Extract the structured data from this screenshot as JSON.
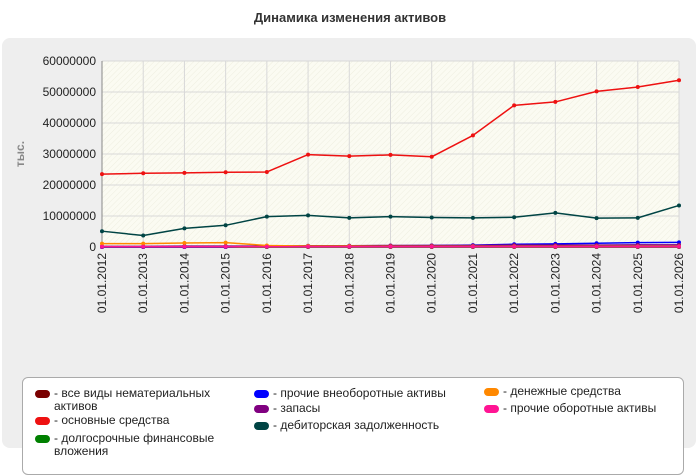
{
  "chart_data": {
    "type": "line",
    "title": "Динамика изменения активов",
    "ylabel": "тыс.",
    "xlabel": "",
    "ylim": [
      0,
      60000000
    ],
    "yticks": [
      "0",
      "10000000",
      "20000000",
      "30000000",
      "40000000",
      "50000000",
      "60000000"
    ],
    "categories": [
      "01.01.2012",
      "01.01.2013",
      "01.01.2014",
      "01.01.2015",
      "01.01.2016",
      "01.01.2017",
      "01.01.2018",
      "01.01.2019",
      "01.01.2020",
      "01.01.2021",
      "01.01.2022",
      "01.01.2023",
      "01.01.2024",
      "01.01.2025",
      "01.01.2026"
    ],
    "grid": true,
    "legend_position": "bottom",
    "series": [
      {
        "name": "- все виды нематериальных активов",
        "color": "#7a0000",
        "values": [
          0,
          0,
          0,
          0,
          0,
          0,
          0,
          0,
          0,
          0,
          0,
          0,
          0,
          0,
          0
        ]
      },
      {
        "name": "- основные средства",
        "color": "#ee1111",
        "values": [
          23500000,
          23800000,
          23900000,
          24100000,
          24200000,
          29800000,
          29300000,
          29700000,
          29100000,
          36000000,
          45700000,
          46800000,
          50200000,
          51600000,
          53800000
        ]
      },
      {
        "name": "- долгосрочные финансовые вложения",
        "color": "#008000",
        "values": [
          0,
          0,
          0,
          0,
          0,
          0,
          0,
          0,
          0,
          0,
          0,
          0,
          0,
          0,
          0
        ]
      },
      {
        "name": "- прочие внеоборотные активы",
        "color": "#0000ff",
        "values": [
          0,
          0,
          0,
          0,
          200000,
          300000,
          400000,
          400000,
          500000,
          600000,
          900000,
          1000000,
          1200000,
          1400000,
          1500000
        ]
      },
      {
        "name": "- запасы",
        "color": "#800080",
        "values": [
          200000,
          200000,
          300000,
          300000,
          300000,
          400000,
          400000,
          500000,
          500000,
          500000,
          600000,
          600000,
          600000,
          700000,
          700000
        ]
      },
      {
        "name": "- дебиторская задолженность",
        "color": "#004444",
        "values": [
          5100000,
          3700000,
          6000000,
          7000000,
          9800000,
          10200000,
          9400000,
          9800000,
          9500000,
          9400000,
          9600000,
          11000000,
          9300000,
          9400000,
          13400000
        ]
      },
      {
        "name": "- денежные средства",
        "color": "#ff8800",
        "values": [
          1100000,
          1100000,
          1300000,
          1400000,
          500000,
          300000,
          300000,
          200000,
          200000,
          200000,
          200000,
          200000,
          200000,
          200000,
          200000
        ]
      },
      {
        "name": "- прочие оборотные активы",
        "color": "#ff1493",
        "values": [
          100000,
          100000,
          100000,
          100000,
          100000,
          100000,
          100000,
          100000,
          100000,
          100000,
          100000,
          100000,
          100000,
          100000,
          100000
        ]
      }
    ]
  }
}
